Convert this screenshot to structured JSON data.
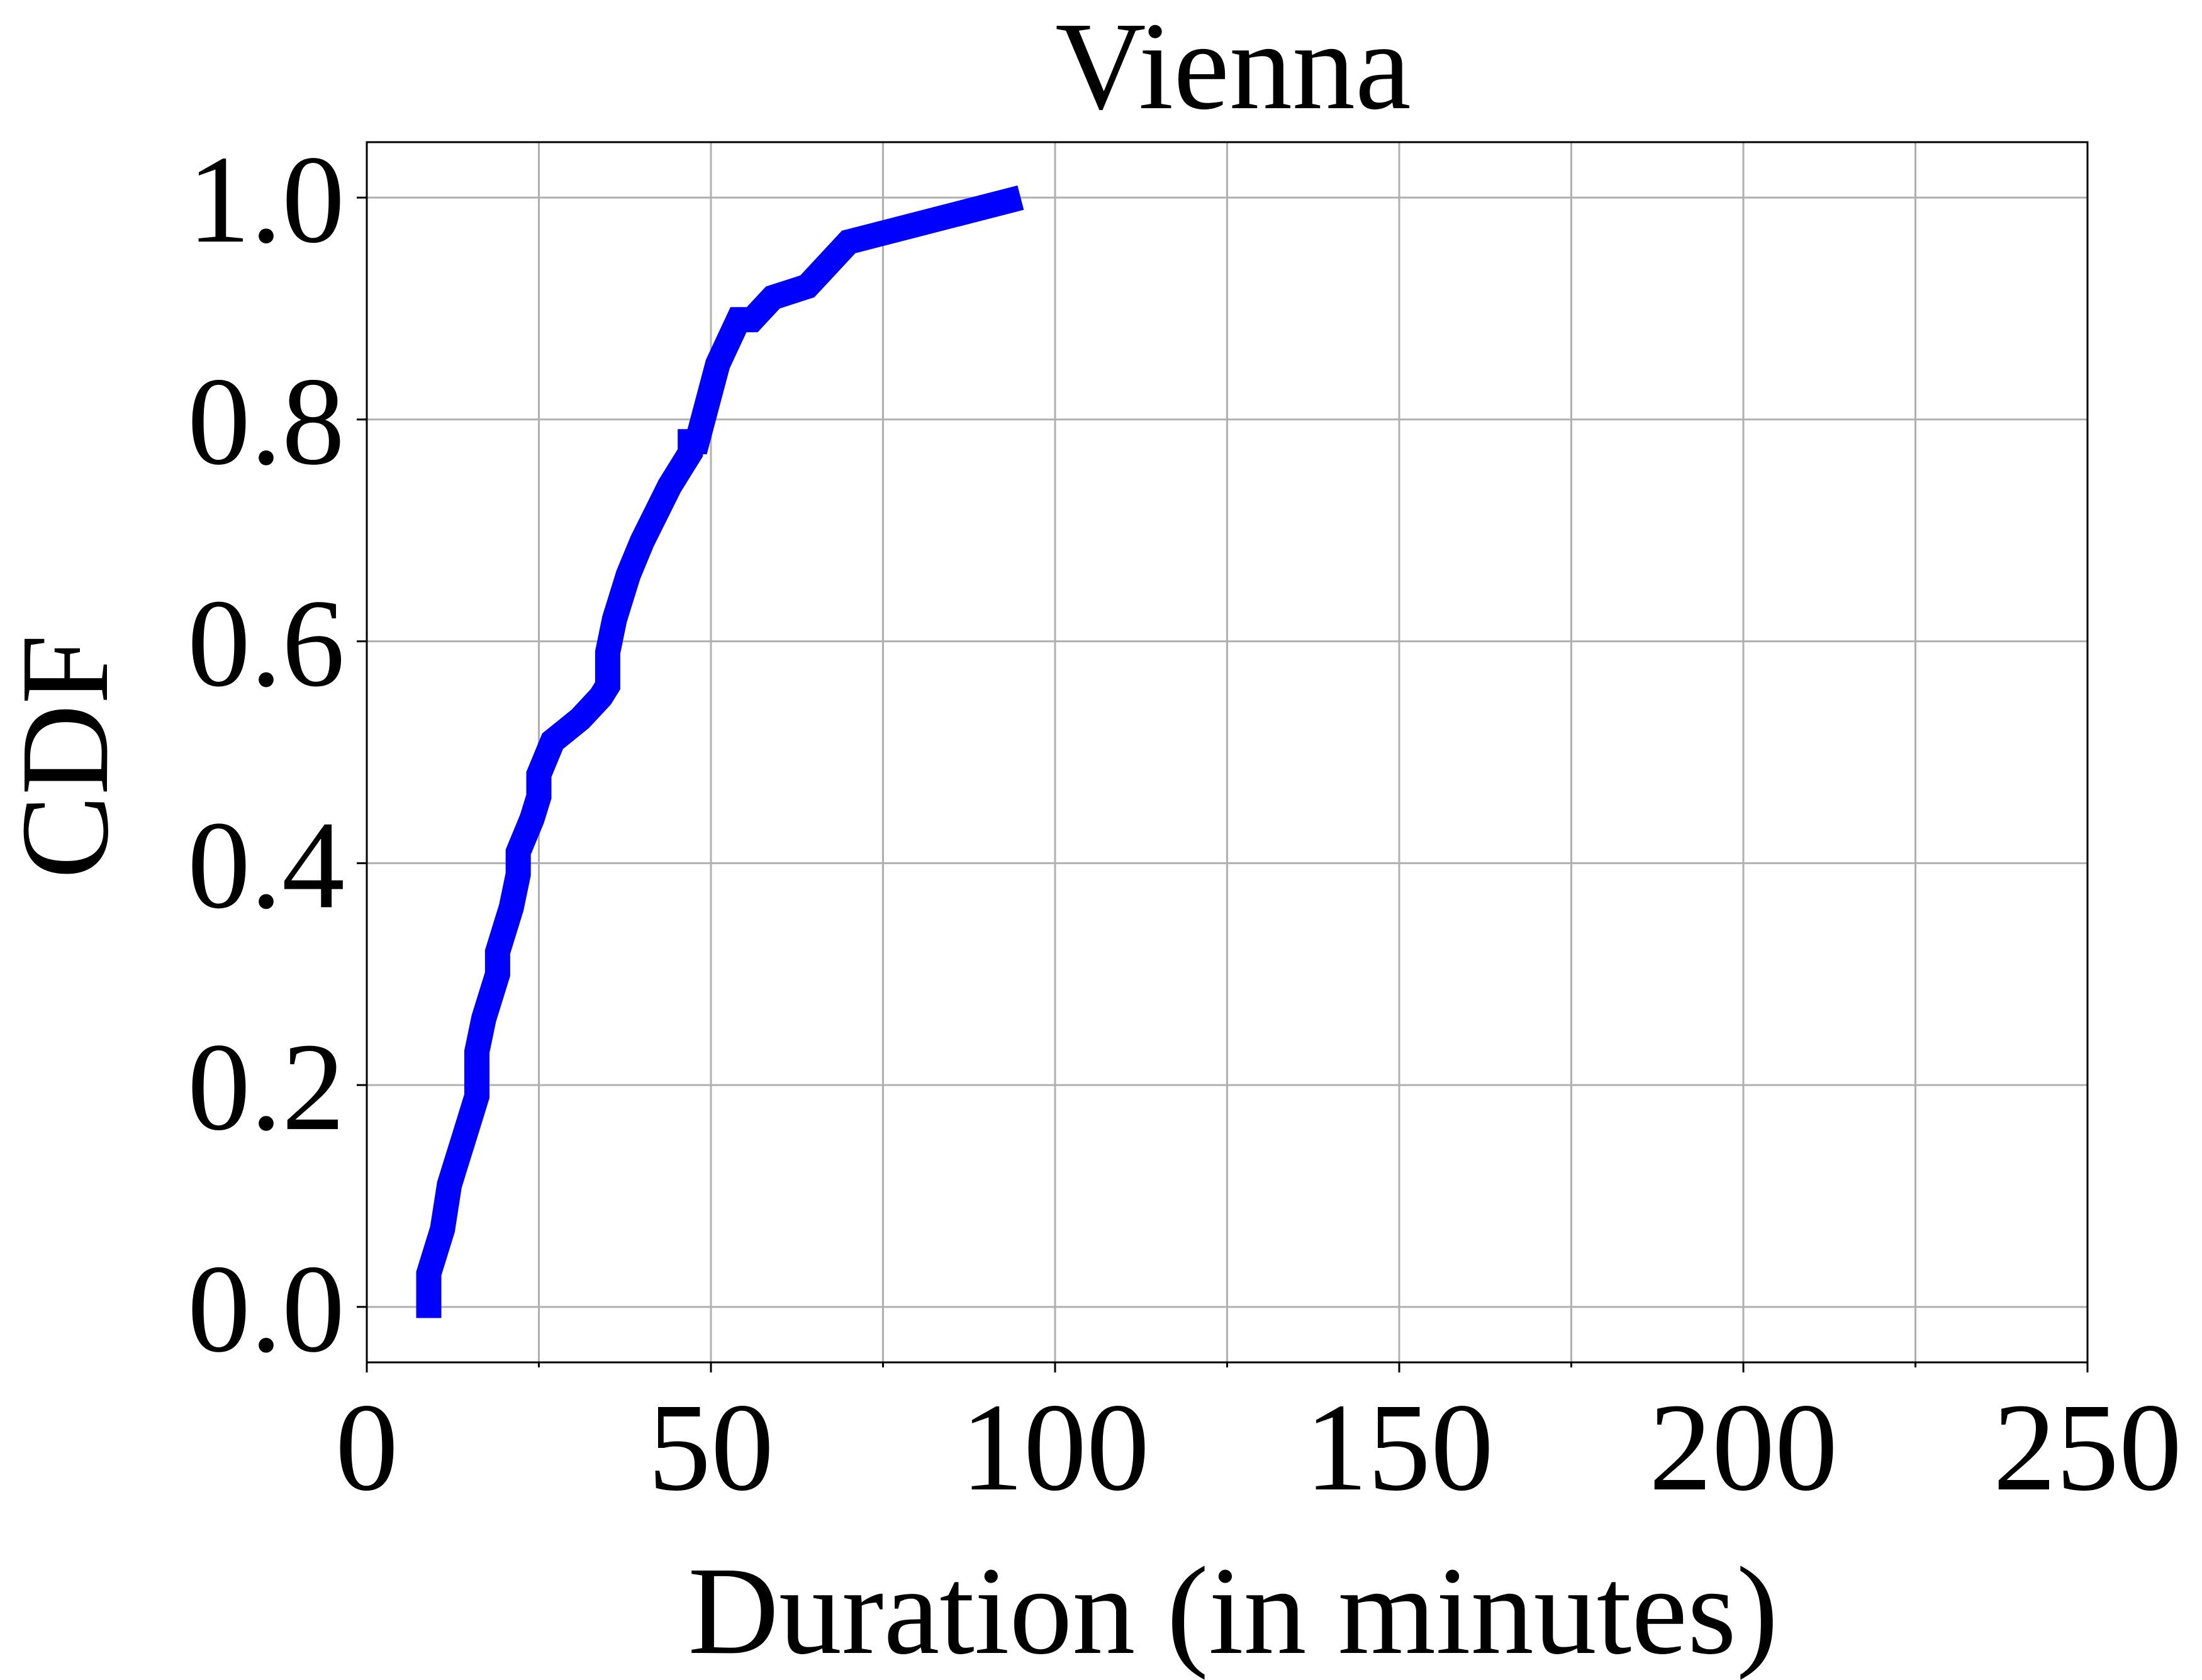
{
  "chart_data": {
    "type": "line",
    "title": "Vienna",
    "xlabel": "Duration (in minutes)",
    "ylabel": "CDF",
    "xlim": [
      0,
      250
    ],
    "ylim": [
      -0.05,
      1.05
    ],
    "xticks": [
      0,
      50,
      100,
      150,
      200,
      250
    ],
    "xtick_labels": [
      "0",
      "50",
      "100",
      "150",
      "200",
      "250"
    ],
    "yticks": [
      0.0,
      0.2,
      0.4,
      0.6,
      0.8,
      1.0
    ],
    "ytick_labels": [
      "0.0",
      "0.2",
      "0.4",
      "0.6",
      "0.8",
      "1.0"
    ],
    "x_minor_ticks": [
      25,
      75,
      125,
      175,
      225
    ],
    "grid": true,
    "legend": "none",
    "colors": {
      "line": "#0000ff",
      "grid": "#b0b0b0",
      "axes": "#000000"
    },
    "series": [
      {
        "x": [
          9,
          9,
          11,
          12,
          13,
          14,
          16,
          16,
          17,
          19,
          19,
          20,
          21,
          22,
          22,
          24,
          25,
          25,
          27,
          31,
          34,
          35,
          35,
          36,
          38,
          40,
          44,
          47,
          47,
          48,
          51,
          54,
          56,
          59,
          64,
          70,
          95
        ],
        "y": [
          -0.01,
          0.03,
          0.07,
          0.11,
          0.13,
          0.15,
          0.19,
          0.23,
          0.26,
          0.3,
          0.32,
          0.34,
          0.36,
          0.39,
          0.41,
          0.44,
          0.46,
          0.48,
          0.51,
          0.53,
          0.55,
          0.56,
          0.59,
          0.62,
          0.66,
          0.69,
          0.74,
          0.77,
          0.78,
          0.78,
          0.85,
          0.89,
          0.89,
          0.91,
          0.92,
          0.96,
          1.0
        ]
      }
    ]
  }
}
